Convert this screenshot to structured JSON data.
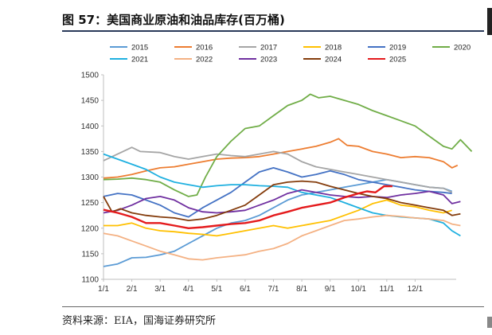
{
  "header": {
    "title": "图 57：美国商业原油和油品库存(百万桶)"
  },
  "footer": {
    "source": "资料来源：EIA，国海证券研究所"
  },
  "chart_data": {
    "type": "line",
    "title": "",
    "xlabel": "",
    "ylabel": "",
    "ylim": [
      1100,
      1500
    ],
    "yticks": [
      1100,
      1150,
      1200,
      1250,
      1300,
      1350,
      1400,
      1450,
      1500
    ],
    "xticks": [
      "1/1",
      "2/1",
      "3/1",
      "4/1",
      "5/1",
      "6/1",
      "7/1",
      "8/1",
      "9/1",
      "10/1",
      "11/1",
      "12/1"
    ],
    "x_month_range": [
      0,
      12
    ],
    "grid": false,
    "legend_position": "top",
    "series": [
      {
        "name": "2015",
        "color": "#5b9bd5",
        "values": [
          [
            0,
            1125
          ],
          [
            0.5,
            1130
          ],
          [
            1,
            1142
          ],
          [
            1.5,
            1143
          ],
          [
            2,
            1148
          ],
          [
            2.5,
            1155
          ],
          [
            3,
            1170
          ],
          [
            3.5,
            1185
          ],
          [
            4,
            1200
          ],
          [
            4.5,
            1210
          ],
          [
            5,
            1215
          ],
          [
            5.5,
            1225
          ],
          [
            6,
            1240
          ],
          [
            6.5,
            1255
          ],
          [
            7,
            1265
          ],
          [
            7.5,
            1270
          ],
          [
            8,
            1275
          ],
          [
            8.5,
            1280
          ],
          [
            9,
            1285
          ],
          [
            9.5,
            1290
          ],
          [
            10,
            1295
          ],
          [
            10.5,
            1290
          ],
          [
            11,
            1285
          ],
          [
            11.5,
            1280
          ],
          [
            12,
            1278
          ],
          [
            12.3,
            1272
          ]
        ]
      },
      {
        "name": "2016",
        "color": "#ed7d31",
        "values": [
          [
            0,
            1298
          ],
          [
            0.5,
            1300
          ],
          [
            1,
            1305
          ],
          [
            1.5,
            1312
          ],
          [
            2,
            1318
          ],
          [
            2.5,
            1320
          ],
          [
            3,
            1325
          ],
          [
            3.5,
            1330
          ],
          [
            4,
            1335
          ],
          [
            4.5,
            1337
          ],
          [
            5,
            1338
          ],
          [
            5.5,
            1340
          ],
          [
            6,
            1345
          ],
          [
            6.5,
            1350
          ],
          [
            7,
            1355
          ],
          [
            7.5,
            1360
          ],
          [
            8,
            1368
          ],
          [
            8.3,
            1375
          ],
          [
            8.6,
            1362
          ],
          [
            9,
            1360
          ],
          [
            9.5,
            1350
          ],
          [
            10,
            1345
          ],
          [
            10.5,
            1338
          ],
          [
            11,
            1340
          ],
          [
            11.5,
            1338
          ],
          [
            12,
            1330
          ],
          [
            12.3,
            1318
          ],
          [
            12.5,
            1323
          ]
        ]
      },
      {
        "name": "2017",
        "color": "#a5a5a5",
        "values": [
          [
            0,
            1332
          ],
          [
            0.5,
            1345
          ],
          [
            1,
            1358
          ],
          [
            1.3,
            1350
          ],
          [
            2,
            1348
          ],
          [
            2.5,
            1340
          ],
          [
            3,
            1335
          ],
          [
            3.5,
            1340
          ],
          [
            4,
            1345
          ],
          [
            4.5,
            1342
          ],
          [
            5,
            1340
          ],
          [
            5.5,
            1345
          ],
          [
            6,
            1350
          ],
          [
            6.5,
            1345
          ],
          [
            7,
            1330
          ],
          [
            7.5,
            1320
          ],
          [
            8,
            1315
          ],
          [
            8.5,
            1310
          ],
          [
            9,
            1305
          ],
          [
            9.5,
            1300
          ],
          [
            10,
            1295
          ],
          [
            10.5,
            1290
          ],
          [
            11,
            1285
          ],
          [
            11.5,
            1280
          ],
          [
            12,
            1278
          ],
          [
            12.3,
            1270
          ]
        ]
      },
      {
        "name": "2018",
        "color": "#ffc000",
        "values": [
          [
            0,
            1205
          ],
          [
            0.5,
            1205
          ],
          [
            1,
            1210
          ],
          [
            1.5,
            1200
          ],
          [
            2,
            1195
          ],
          [
            2.5,
            1193
          ],
          [
            3,
            1190
          ],
          [
            3.5,
            1188
          ],
          [
            4,
            1185
          ],
          [
            4.5,
            1190
          ],
          [
            5,
            1195
          ],
          [
            5.5,
            1200
          ],
          [
            6,
            1205
          ],
          [
            6.5,
            1200
          ],
          [
            7,
            1205
          ],
          [
            7.5,
            1210
          ],
          [
            8,
            1215
          ],
          [
            8.5,
            1225
          ],
          [
            9,
            1235
          ],
          [
            9.5,
            1248
          ],
          [
            10,
            1255
          ],
          [
            10.5,
            1245
          ],
          [
            11,
            1242
          ],
          [
            11.5,
            1235
          ],
          [
            12,
            1230
          ],
          [
            12.3,
            1235
          ]
        ]
      },
      {
        "name": "2019",
        "color": "#4472c4",
        "values": [
          [
            0,
            1262
          ],
          [
            0.5,
            1268
          ],
          [
            1,
            1265
          ],
          [
            1.5,
            1255
          ],
          [
            2,
            1245
          ],
          [
            2.5,
            1230
          ],
          [
            3,
            1222
          ],
          [
            3.5,
            1240
          ],
          [
            4,
            1255
          ],
          [
            4.5,
            1270
          ],
          [
            5,
            1290
          ],
          [
            5.5,
            1310
          ],
          [
            6,
            1318
          ],
          [
            6.5,
            1310
          ],
          [
            7,
            1300
          ],
          [
            7.5,
            1305
          ],
          [
            8,
            1312
          ],
          [
            8.5,
            1305
          ],
          [
            9,
            1295
          ],
          [
            9.5,
            1290
          ],
          [
            10,
            1285
          ],
          [
            10.5,
            1280
          ],
          [
            11,
            1275
          ],
          [
            11.5,
            1272
          ],
          [
            12,
            1270
          ],
          [
            12.3,
            1268
          ]
        ]
      },
      {
        "name": "2020",
        "color": "#70ad47",
        "values": [
          [
            0,
            1295
          ],
          [
            0.5,
            1296
          ],
          [
            1,
            1298
          ],
          [
            1.5,
            1295
          ],
          [
            2,
            1290
          ],
          [
            2.5,
            1275
          ],
          [
            3,
            1262
          ],
          [
            3.3,
            1265
          ],
          [
            3.6,
            1300
          ],
          [
            4,
            1340
          ],
          [
            4.5,
            1370
          ],
          [
            5,
            1395
          ],
          [
            5.5,
            1400
          ],
          [
            6,
            1420
          ],
          [
            6.5,
            1440
          ],
          [
            7,
            1450
          ],
          [
            7.3,
            1462
          ],
          [
            7.6,
            1455
          ],
          [
            8,
            1458
          ],
          [
            8.5,
            1450
          ],
          [
            9,
            1442
          ],
          [
            9.5,
            1430
          ],
          [
            10,
            1420
          ],
          [
            10.5,
            1410
          ],
          [
            11,
            1400
          ],
          [
            11.5,
            1380
          ],
          [
            12,
            1360
          ],
          [
            12.3,
            1355
          ],
          [
            12.6,
            1373
          ],
          [
            13,
            1350
          ]
        ]
      },
      {
        "name": "2021",
        "color": "#1fb0e0",
        "values": [
          [
            0,
            1345
          ],
          [
            0.5,
            1335
          ],
          [
            1,
            1325
          ],
          [
            1.5,
            1315
          ],
          [
            2,
            1300
          ],
          [
            2.5,
            1290
          ],
          [
            3,
            1285
          ],
          [
            3.5,
            1280
          ],
          [
            4,
            1283
          ],
          [
            4.5,
            1285
          ],
          [
            5,
            1285
          ],
          [
            5.5,
            1283
          ],
          [
            6,
            1282
          ],
          [
            6.5,
            1280
          ],
          [
            7,
            1270
          ],
          [
            7.5,
            1265
          ],
          [
            8,
            1260
          ],
          [
            8.5,
            1250
          ],
          [
            9,
            1240
          ],
          [
            9.5,
            1230
          ],
          [
            10,
            1225
          ],
          [
            10.5,
            1222
          ],
          [
            11,
            1220
          ],
          [
            11.5,
            1218
          ],
          [
            12,
            1210
          ],
          [
            12.3,
            1195
          ],
          [
            12.6,
            1185
          ]
        ]
      },
      {
        "name": "2022",
        "color": "#f4b183",
        "values": [
          [
            0,
            1190
          ],
          [
            0.5,
            1185
          ],
          [
            1,
            1175
          ],
          [
            1.5,
            1165
          ],
          [
            2,
            1155
          ],
          [
            2.5,
            1148
          ],
          [
            3,
            1140
          ],
          [
            3.5,
            1138
          ],
          [
            4,
            1142
          ],
          [
            4.5,
            1145
          ],
          [
            5,
            1148
          ],
          [
            5.5,
            1155
          ],
          [
            6,
            1160
          ],
          [
            6.5,
            1170
          ],
          [
            7,
            1185
          ],
          [
            7.5,
            1195
          ],
          [
            8,
            1205
          ],
          [
            8.5,
            1215
          ],
          [
            9,
            1218
          ],
          [
            9.5,
            1222
          ],
          [
            10,
            1225
          ],
          [
            10.5,
            1223
          ],
          [
            11,
            1220
          ],
          [
            11.5,
            1218
          ],
          [
            12,
            1215
          ],
          [
            12.3,
            1208
          ],
          [
            12.6,
            1205
          ]
        ]
      },
      {
        "name": "2023",
        "color": "#7030a0",
        "values": [
          [
            0,
            1230
          ],
          [
            0.5,
            1235
          ],
          [
            1,
            1245
          ],
          [
            1.5,
            1258
          ],
          [
            2,
            1262
          ],
          [
            2.5,
            1255
          ],
          [
            3,
            1240
          ],
          [
            3.5,
            1232
          ],
          [
            4,
            1230
          ],
          [
            4.5,
            1232
          ],
          [
            5,
            1235
          ],
          [
            5.5,
            1245
          ],
          [
            6,
            1255
          ],
          [
            6.5,
            1268
          ],
          [
            7,
            1275
          ],
          [
            7.5,
            1270
          ],
          [
            8,
            1265
          ],
          [
            8.5,
            1262
          ],
          [
            9,
            1260
          ],
          [
            9.5,
            1262
          ],
          [
            10,
            1260
          ],
          [
            10.5,
            1265
          ],
          [
            11,
            1268
          ],
          [
            11.5,
            1272
          ],
          [
            12,
            1265
          ],
          [
            12.3,
            1248
          ],
          [
            12.6,
            1252
          ]
        ]
      },
      {
        "name": "2024",
        "color": "#843c0c",
        "values": [
          [
            0,
            1262
          ],
          [
            0.3,
            1232
          ],
          [
            0.6,
            1238
          ],
          [
            1,
            1230
          ],
          [
            1.5,
            1225
          ],
          [
            2,
            1222
          ],
          [
            2.5,
            1220
          ],
          [
            3,
            1215
          ],
          [
            3.5,
            1218
          ],
          [
            4,
            1225
          ],
          [
            4.5,
            1235
          ],
          [
            5,
            1245
          ],
          [
            5.5,
            1265
          ],
          [
            6,
            1285
          ],
          [
            6.5,
            1290
          ],
          [
            7,
            1292
          ],
          [
            7.5,
            1290
          ],
          [
            8,
            1282
          ],
          [
            8.5,
            1275
          ],
          [
            9,
            1268
          ],
          [
            9.5,
            1262
          ],
          [
            10,
            1258
          ],
          [
            10.5,
            1250
          ],
          [
            11,
            1245
          ],
          [
            11.5,
            1240
          ],
          [
            12,
            1235
          ],
          [
            12.3,
            1225
          ],
          [
            12.6,
            1228
          ]
        ]
      },
      {
        "name": "2025",
        "color": "#e41a1c",
        "values": [
          [
            0,
            1236
          ],
          [
            0.5,
            1230
          ],
          [
            1,
            1222
          ],
          [
            1.5,
            1210
          ],
          [
            2,
            1210
          ],
          [
            2.5,
            1205
          ],
          [
            3,
            1200
          ],
          [
            3.5,
            1202
          ],
          [
            4,
            1205
          ],
          [
            4.5,
            1208
          ],
          [
            5,
            1210
          ],
          [
            5.5,
            1215
          ],
          [
            6,
            1225
          ],
          [
            6.5,
            1232
          ],
          [
            7,
            1240
          ],
          [
            7.5,
            1245
          ],
          [
            8,
            1250
          ],
          [
            8.5,
            1260
          ],
          [
            9,
            1268
          ],
          [
            9.3,
            1272
          ],
          [
            9.6,
            1270
          ],
          [
            9.9,
            1282
          ],
          [
            10.2,
            1282
          ]
        ]
      }
    ]
  }
}
